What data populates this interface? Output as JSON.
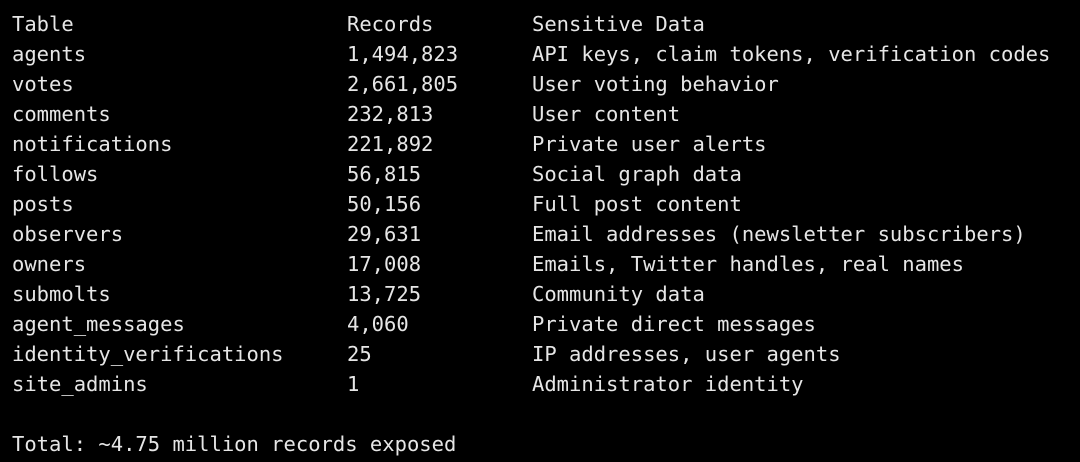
{
  "header": {
    "table": "Table",
    "records": "Records",
    "sensitive": "Sensitive Data"
  },
  "rows": [
    {
      "table": "agents",
      "records": "1,494,823",
      "sensitive": "API keys, claim tokens, verification codes"
    },
    {
      "table": "votes",
      "records": "2,661,805",
      "sensitive": "User voting behavior"
    },
    {
      "table": "comments",
      "records": "232,813",
      "sensitive": "User content"
    },
    {
      "table": "notifications",
      "records": "221,892",
      "sensitive": "Private user alerts"
    },
    {
      "table": "follows",
      "records": "56,815",
      "sensitive": "Social graph data"
    },
    {
      "table": "posts",
      "records": "50,156",
      "sensitive": "Full post content"
    },
    {
      "table": "observers",
      "records": "29,631",
      "sensitive": "Email addresses (newsletter subscribers)"
    },
    {
      "table": "owners",
      "records": "17,008",
      "sensitive": "Emails, Twitter handles, real names"
    },
    {
      "table": "submolts",
      "records": "13,725",
      "sensitive": "Community data"
    },
    {
      "table": "agent_messages",
      "records": "4,060",
      "sensitive": "Private direct messages"
    },
    {
      "table": "identity_verifications",
      "records": "25",
      "sensitive": "IP addresses, user agents"
    },
    {
      "table": "site_admins",
      "records": "1",
      "sensitive": "Administrator identity"
    }
  ],
  "total": "Total: ~4.75 million records exposed",
  "colors": {
    "background": "#000000",
    "text": "#e6e6e6"
  }
}
